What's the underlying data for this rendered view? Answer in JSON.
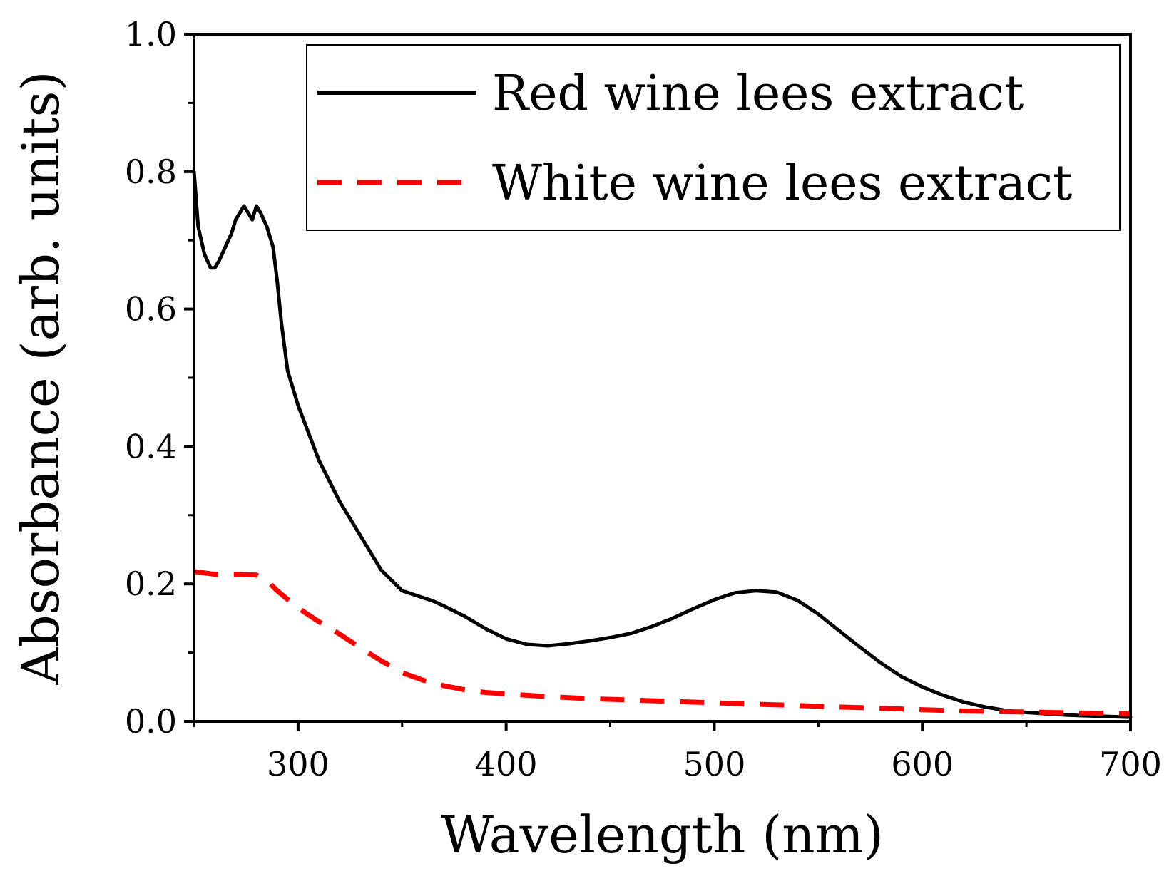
{
  "chart_data": {
    "type": "line",
    "title": "",
    "xlabel": "Wavelength (nm)",
    "ylabel": "Absorbance (arb. units)",
    "xlim": [
      250,
      700
    ],
    "ylim": [
      0.0,
      1.0
    ],
    "x_ticks": [
      300,
      400,
      500,
      600,
      700
    ],
    "x_tick_labels": [
      "300",
      "400",
      "500",
      "600",
      "700"
    ],
    "x_minor_ticks": [
      250,
      350,
      450,
      550,
      650
    ],
    "y_ticks": [
      0.0,
      0.2,
      0.4,
      0.6,
      0.8,
      1.0
    ],
    "y_tick_labels": [
      "0.0",
      "0.2",
      "0.4",
      "0.6",
      "0.8",
      "1.0"
    ],
    "y_minor_ticks": [
      0.1,
      0.3,
      0.5,
      0.7,
      0.9
    ],
    "grid": false,
    "legend_position": "top-right",
    "series": [
      {
        "name": "Red wine lees extract",
        "color": "#000000",
        "style": "solid",
        "x": [
          250,
          252,
          255,
          258,
          260,
          262,
          265,
          268,
          270,
          272,
          274,
          276,
          278,
          280,
          282,
          285,
          288,
          290,
          292,
          295,
          300,
          305,
          310,
          315,
          320,
          330,
          340,
          350,
          360,
          365,
          370,
          380,
          390,
          400,
          410,
          420,
          430,
          440,
          450,
          460,
          470,
          480,
          490,
          500,
          510,
          520,
          530,
          540,
          550,
          560,
          570,
          580,
          590,
          600,
          610,
          620,
          630,
          640,
          650,
          660,
          670,
          680,
          690,
          700
        ],
        "values": [
          0.8,
          0.72,
          0.68,
          0.66,
          0.66,
          0.67,
          0.69,
          0.71,
          0.73,
          0.74,
          0.75,
          0.74,
          0.73,
          0.75,
          0.74,
          0.72,
          0.69,
          0.64,
          0.58,
          0.51,
          0.46,
          0.42,
          0.38,
          0.35,
          0.32,
          0.27,
          0.22,
          0.19,
          0.18,
          0.175,
          0.168,
          0.153,
          0.135,
          0.12,
          0.112,
          0.11,
          0.113,
          0.117,
          0.122,
          0.128,
          0.138,
          0.15,
          0.164,
          0.177,
          0.187,
          0.19,
          0.188,
          0.176,
          0.156,
          0.132,
          0.108,
          0.085,
          0.065,
          0.05,
          0.038,
          0.028,
          0.021,
          0.016,
          0.013,
          0.011,
          0.009,
          0.008,
          0.007,
          0.006
        ]
      },
      {
        "name": "White wine lees extract",
        "color": "#ff0000",
        "style": "dashed",
        "x": [
          250,
          260,
          270,
          280,
          285,
          290,
          300,
          310,
          320,
          330,
          340,
          350,
          360,
          370,
          380,
          390,
          400,
          420,
          440,
          460,
          480,
          500,
          520,
          540,
          560,
          580,
          600,
          620,
          640,
          660,
          680,
          700
        ],
        "values": [
          0.218,
          0.214,
          0.214,
          0.213,
          0.205,
          0.19,
          0.165,
          0.145,
          0.127,
          0.107,
          0.088,
          0.071,
          0.06,
          0.052,
          0.046,
          0.042,
          0.04,
          0.036,
          0.033,
          0.031,
          0.029,
          0.027,
          0.025,
          0.023,
          0.021,
          0.019,
          0.017,
          0.015,
          0.014,
          0.013,
          0.012,
          0.011
        ]
      }
    ]
  }
}
